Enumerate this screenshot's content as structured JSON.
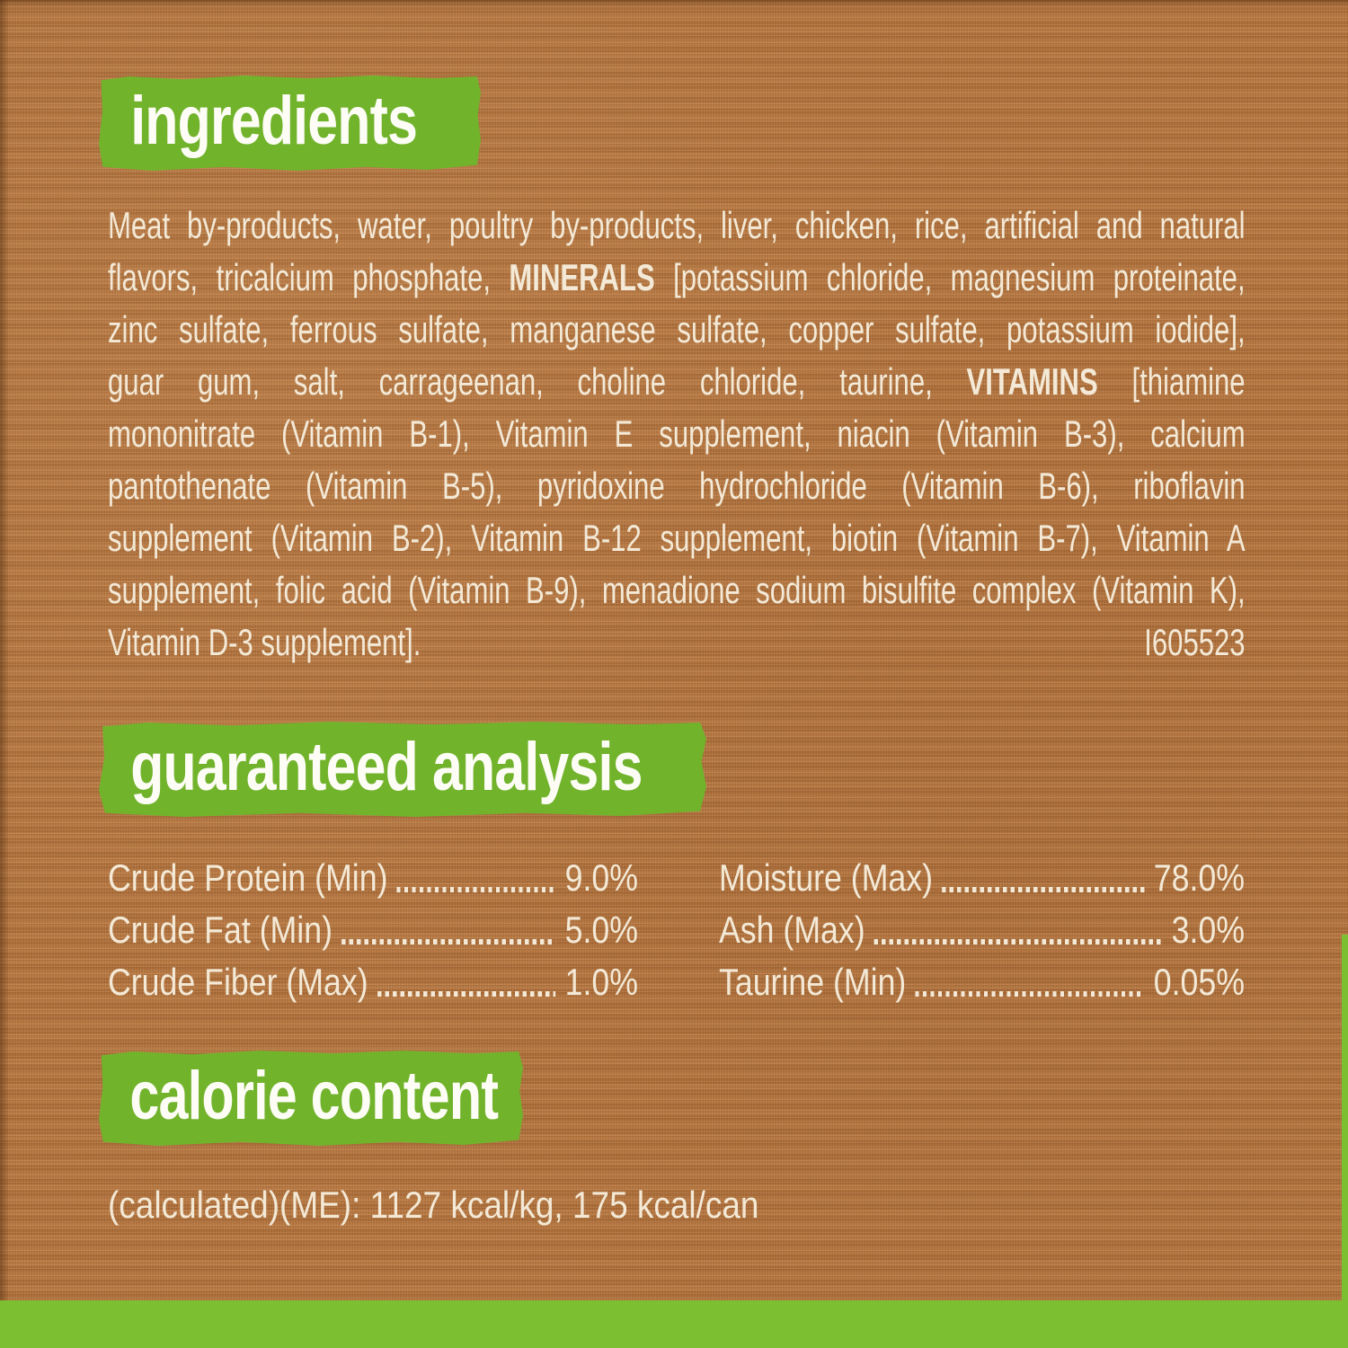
{
  "colors": {
    "background_brown": "#b1703a",
    "banner_green": "#72b32c",
    "bottom_bar_green": "#7cbf31",
    "body_text_cream": "#f3e9d6",
    "header_text_white": "#fdfdf6"
  },
  "ingredients": {
    "title": "ingredients",
    "lines": [
      [
        {
          "t": "Meat by-products, water, poultry by-products, liver, chicken, rice, artificial and natural"
        }
      ],
      [
        {
          "t": "flavors, tricalcium phosphate, "
        },
        {
          "t": "MINERALS",
          "b": true
        },
        {
          "t": " [potassium chloride, magnesium proteinate,"
        }
      ],
      [
        {
          "t": "zinc sulfate, ferrous sulfate, manganese sulfate, copper sulfate, potassium iodide],"
        }
      ],
      [
        {
          "t": "guar gum, salt, carrageenan, choline chloride, taurine, "
        },
        {
          "t": "VITAMINS",
          "b": true
        },
        {
          "t": " [thiamine"
        }
      ],
      [
        {
          "t": "mononitrate (Vitamin B-1), Vitamin E supplement, niacin (Vitamin B-3), calcium"
        }
      ],
      [
        {
          "t": "pantothenate (Vitamin B-5), pyridoxine hydrochloride (Vitamin B-6), riboflavin"
        }
      ],
      [
        {
          "t": "supplement (Vitamin B-2), Vitamin B-12 supplement, biotin (Vitamin B-7), Vitamin A"
        }
      ],
      [
        {
          "t": "supplement, folic acid (Vitamin B-9), menadione sodium bisulfite complex (Vitamin K),"
        }
      ]
    ],
    "last_line": {
      "text": "Vitamin D-3 supplement].",
      "code": "I605523"
    }
  },
  "guaranteed_analysis": {
    "title": "guaranteed analysis",
    "left_rows": [
      {
        "label": "Crude Protein (Min)",
        "value": "9.0%"
      },
      {
        "label": "Crude Fat (Min)",
        "value": "5.0%"
      },
      {
        "label": "Crude Fiber (Max)",
        "value": "1.0%"
      }
    ],
    "right_rows": [
      {
        "label": "Moisture (Max)",
        "value": "78.0%"
      },
      {
        "label": "Ash (Max)",
        "value": "3.0%"
      },
      {
        "label": "Taurine (Min)",
        "value": "0.05%"
      }
    ]
  },
  "calorie_content": {
    "title": "calorie content",
    "text": "(calculated)(ME): 1127 kcal/kg, 175 kcal/can"
  }
}
